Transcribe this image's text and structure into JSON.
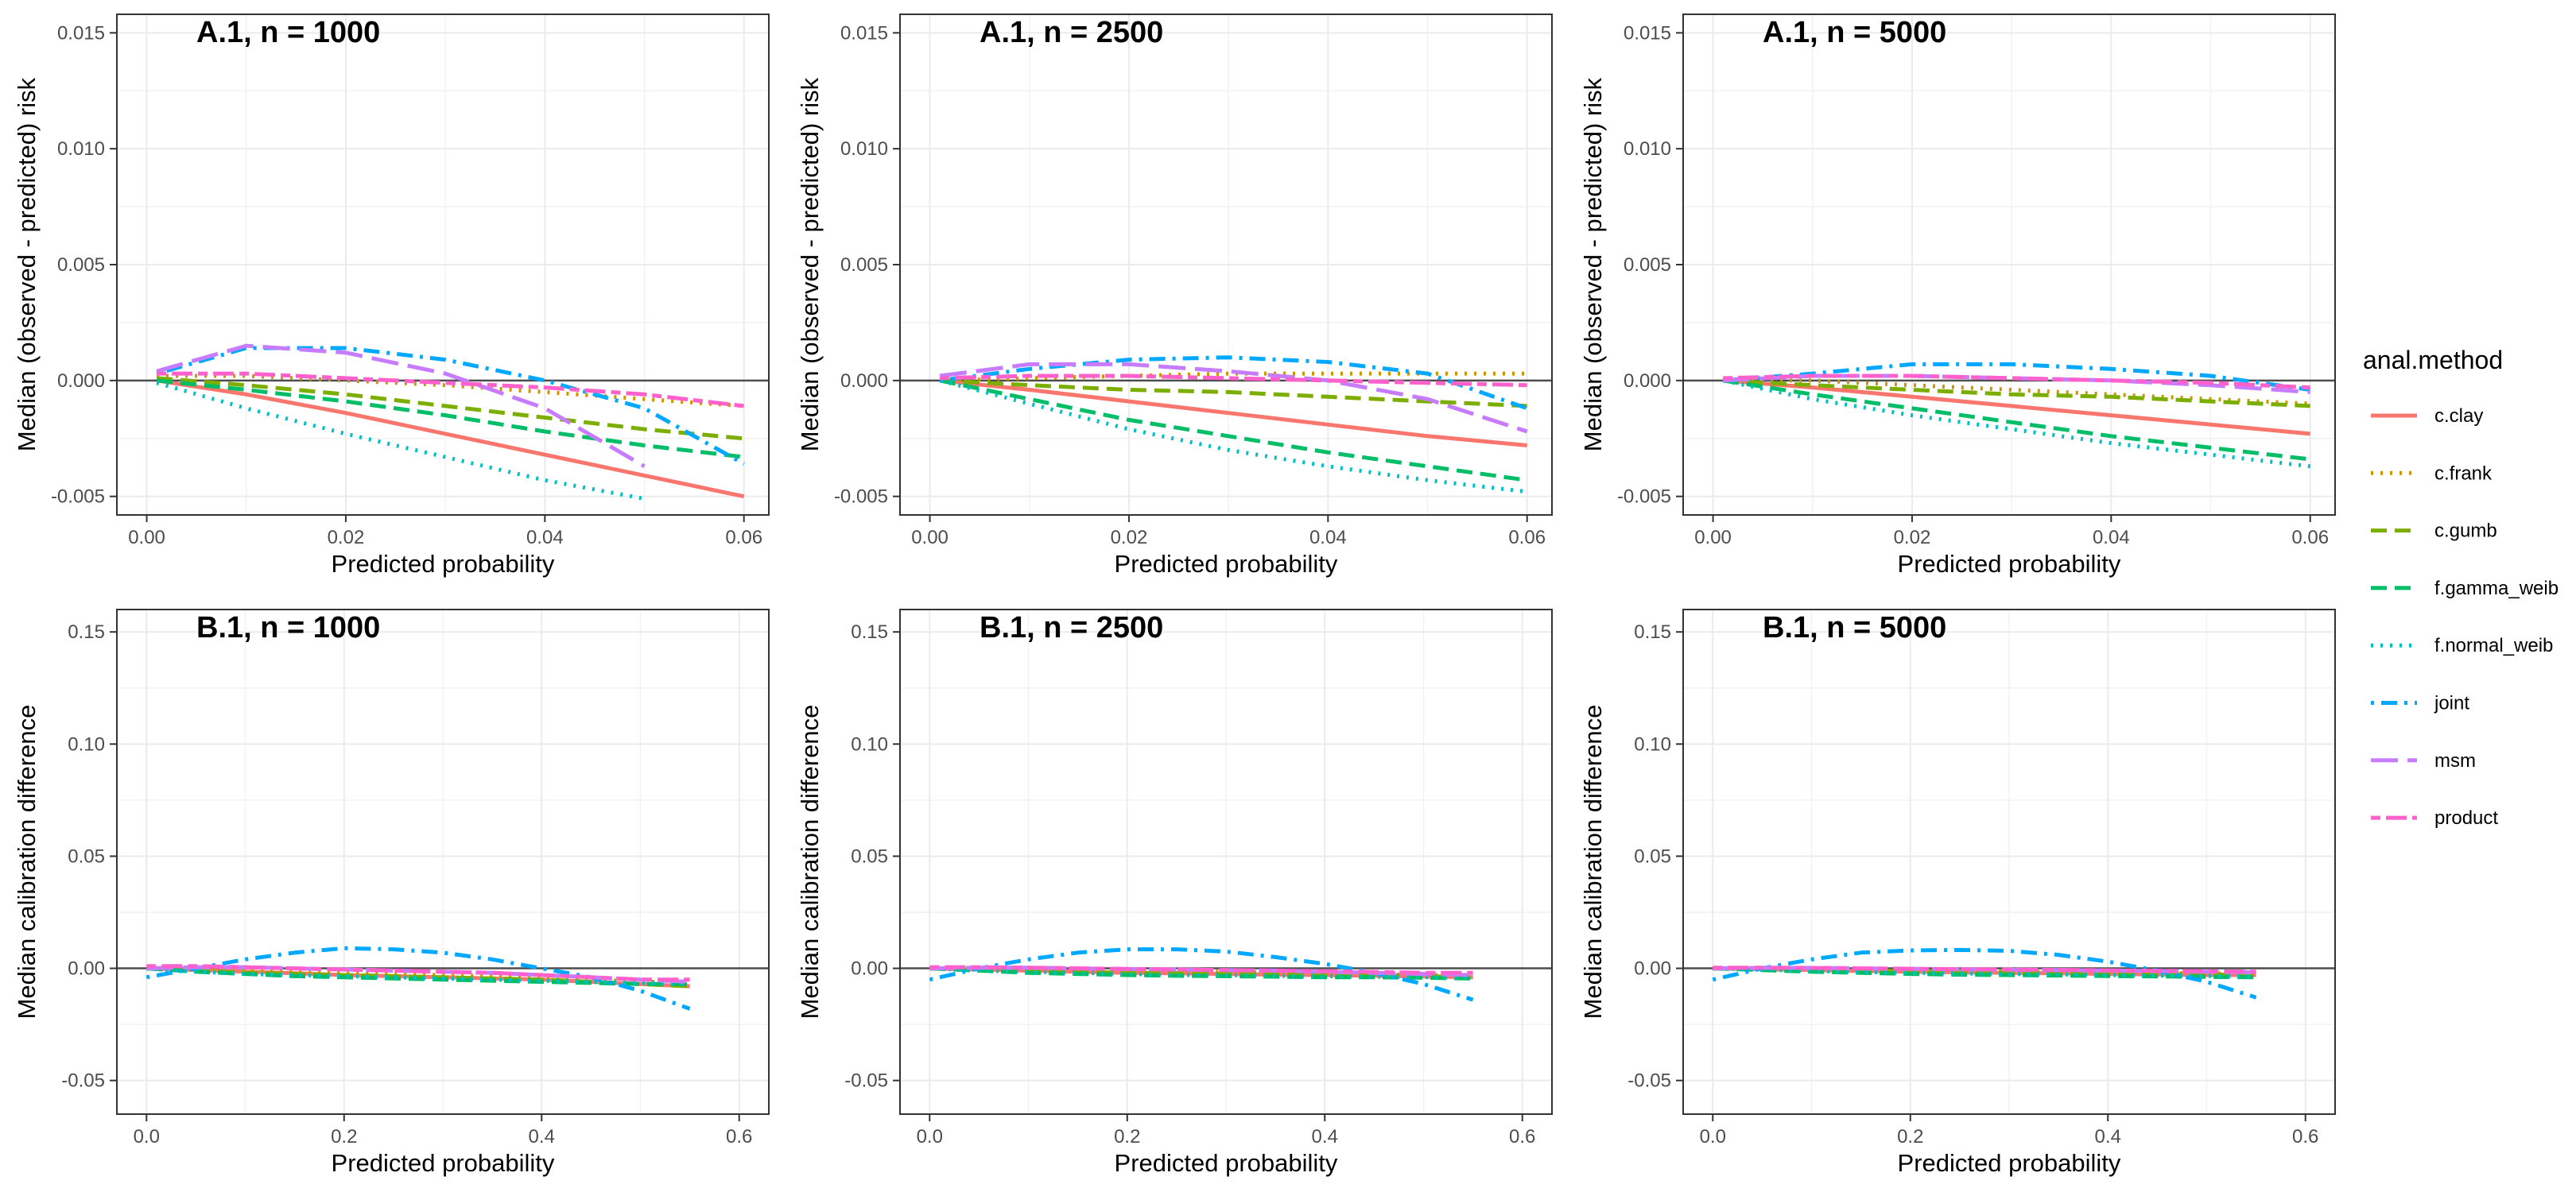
{
  "legend": {
    "title": "anal.method",
    "entries": [
      {
        "name": "c.clay",
        "color": "#F8766D",
        "dash": "solid"
      },
      {
        "name": "c.frank",
        "color": "#CD9600",
        "dash": "dotted"
      },
      {
        "name": "c.gumb",
        "color": "#7CAE00",
        "dash": "dashed"
      },
      {
        "name": "f.gamma_weib",
        "color": "#00BE67",
        "dash": "dashed"
      },
      {
        "name": "f.normal_weib",
        "color": "#00BFC4",
        "dash": "dotted"
      },
      {
        "name": "joint",
        "color": "#00A9FF",
        "dash": "dotdash"
      },
      {
        "name": "msm",
        "color": "#C77CFF",
        "dash": "longdash"
      },
      {
        "name": "product",
        "color": "#FF61CC",
        "dash": "twodash"
      }
    ]
  },
  "chart_data": [
    {
      "type": "line",
      "title": "A.1, n = 1000",
      "xlabel": "Predicted probability",
      "ylabel": "Median (observed - predicted) risk",
      "xlim": [
        -0.003,
        0.0625
      ],
      "ylim": [
        -0.0058,
        0.0158
      ],
      "xticks": [
        0,
        0.02,
        0.04,
        0.06
      ],
      "xticklabels": [
        "0.00",
        "0.02",
        "0.04",
        "0.06"
      ],
      "yticks": [
        -0.005,
        0,
        0.005,
        0.01,
        0.015
      ],
      "yticklabels": [
        "-0.005",
        "0.000",
        "0.005",
        "0.010",
        "0.015"
      ],
      "x": [
        0.001,
        0.01,
        0.02,
        0.03,
        0.04,
        0.05,
        0.06
      ],
      "series": [
        {
          "name": "c.clay",
          "values": [
            0.0,
            -0.0006,
            -0.0014,
            -0.0023,
            -0.0032,
            -0.0041,
            -0.005
          ]
        },
        {
          "name": "c.frank",
          "values": [
            0.0002,
            0.0002,
            0.0,
            -0.0002,
            -0.0005,
            -0.0008,
            -0.0011
          ]
        },
        {
          "name": "c.gumb",
          "values": [
            0.0001,
            -0.0002,
            -0.0006,
            -0.0011,
            -0.0016,
            -0.0021,
            -0.0025
          ]
        },
        {
          "name": "f.gamma_weib",
          "values": [
            0.0,
            -0.0004,
            -0.0009,
            -0.0015,
            -0.0022,
            -0.0028,
            -0.0033
          ]
        },
        {
          "name": "f.normal_weib",
          "values": [
            -0.0001,
            -0.0012,
            -0.0023,
            -0.0033,
            -0.0043,
            -0.0051,
            null
          ]
        },
        {
          "name": "joint",
          "values": [
            0.0003,
            0.0014,
            0.0014,
            0.0009,
            0.0,
            -0.0012,
            -0.0036
          ]
        },
        {
          "name": "msm",
          "values": [
            0.0004,
            0.0015,
            0.0012,
            0.0003,
            -0.0012,
            -0.0037,
            null
          ]
        },
        {
          "name": "product",
          "values": [
            0.0003,
            0.0003,
            0.0001,
            -0.0001,
            -0.0003,
            -0.0006,
            -0.0011
          ]
        }
      ]
    },
    {
      "type": "line",
      "title": "A.1, n = 2500",
      "xlabel": "Predicted probability",
      "ylabel": "Median (observed - predicted) risk",
      "xlim": [
        -0.003,
        0.0625
      ],
      "ylim": [
        -0.0058,
        0.0158
      ],
      "xticks": [
        0,
        0.02,
        0.04,
        0.06
      ],
      "xticklabels": [
        "0.00",
        "0.02",
        "0.04",
        "0.06"
      ],
      "yticks": [
        -0.005,
        0,
        0.005,
        0.01,
        0.015
      ],
      "yticklabels": [
        "-0.005",
        "0.000",
        "0.005",
        "0.010",
        "0.015"
      ],
      "x": [
        0.001,
        0.01,
        0.02,
        0.03,
        0.04,
        0.05,
        0.06
      ],
      "series": [
        {
          "name": "c.clay",
          "values": [
            0.0,
            -0.0004,
            -0.0009,
            -0.0014,
            -0.0019,
            -0.0024,
            -0.0028
          ]
        },
        {
          "name": "c.frank",
          "values": [
            0.0,
            0.0001,
            0.0002,
            0.0003,
            0.0003,
            0.0003,
            0.0003
          ]
        },
        {
          "name": "c.gumb",
          "values": [
            0.0,
            -0.0002,
            -0.0004,
            -0.0005,
            -0.0007,
            -0.0009,
            -0.0011
          ]
        },
        {
          "name": "f.gamma_weib",
          "values": [
            0.0,
            -0.0008,
            -0.0017,
            -0.0024,
            -0.0031,
            -0.0037,
            -0.0043
          ]
        },
        {
          "name": "f.normal_weib",
          "values": [
            0.0,
            -0.001,
            -0.0021,
            -0.003,
            -0.0037,
            -0.0043,
            -0.0048
          ]
        },
        {
          "name": "joint",
          "values": [
            0.0,
            0.0005,
            0.0009,
            0.001,
            0.0008,
            0.0003,
            -0.0012
          ]
        },
        {
          "name": "msm",
          "values": [
            0.0002,
            0.0007,
            0.0007,
            0.0004,
            0.0,
            -0.0008,
            -0.0022
          ]
        },
        {
          "name": "product",
          "values": [
            0.0001,
            0.0002,
            0.0002,
            0.0001,
            0.0,
            -0.0001,
            -0.0002
          ]
        }
      ]
    },
    {
      "type": "line",
      "title": "A.1, n = 5000",
      "xlabel": "Predicted probability",
      "ylabel": "Median (observed - predicted) risk",
      "xlim": [
        -0.003,
        0.0625
      ],
      "ylim": [
        -0.0058,
        0.0158
      ],
      "xticks": [
        0,
        0.02,
        0.04,
        0.06
      ],
      "xticklabels": [
        "0.00",
        "0.02",
        "0.04",
        "0.06"
      ],
      "yticks": [
        -0.005,
        0,
        0.005,
        0.01,
        0.015
      ],
      "yticklabels": [
        "-0.005",
        "0.000",
        "0.005",
        "0.010",
        "0.015"
      ],
      "x": [
        0.001,
        0.01,
        0.02,
        0.03,
        0.04,
        0.05,
        0.06
      ],
      "series": [
        {
          "name": "c.clay",
          "values": [
            0.0,
            -0.0003,
            -0.0007,
            -0.0011,
            -0.0015,
            -0.0019,
            -0.0023
          ]
        },
        {
          "name": "c.frank",
          "values": [
            0.0,
            0.0,
            -0.0002,
            -0.0004,
            -0.0006,
            -0.0008,
            -0.001
          ]
        },
        {
          "name": "c.gumb",
          "values": [
            0.0,
            -0.0002,
            -0.0004,
            -0.0006,
            -0.0007,
            -0.0009,
            -0.0011
          ]
        },
        {
          "name": "f.gamma_weib",
          "values": [
            0.0,
            -0.0006,
            -0.0012,
            -0.0018,
            -0.0024,
            -0.0029,
            -0.0034
          ]
        },
        {
          "name": "f.normal_weib",
          "values": [
            0.0,
            -0.0008,
            -0.0015,
            -0.0021,
            -0.0027,
            -0.0032,
            -0.0037
          ]
        },
        {
          "name": "joint",
          "values": [
            0.0,
            0.0003,
            0.0007,
            0.0007,
            0.0005,
            0.0002,
            -0.0004
          ]
        },
        {
          "name": "msm",
          "values": [
            0.0,
            0.0002,
            0.0002,
            0.0001,
            0.0,
            -0.0002,
            -0.0005
          ]
        },
        {
          "name": "product",
          "values": [
            0.0001,
            0.0002,
            0.0002,
            0.0001,
            0.0,
            -0.0001,
            -0.0003
          ]
        }
      ]
    },
    {
      "type": "line",
      "title": "B.1, n = 1000",
      "xlabel": "Predicted probability",
      "ylabel": "Median calibration difference",
      "xlim": [
        -0.03,
        0.63
      ],
      "ylim": [
        -0.065,
        0.16
      ],
      "xticks": [
        0,
        0.2,
        0.4,
        0.6
      ],
      "xticklabels": [
        "0.0",
        "0.2",
        "0.4",
        "0.6"
      ],
      "yticks": [
        -0.05,
        0,
        0.05,
        0.1,
        0.15
      ],
      "yticklabels": [
        "-0.05",
        "0.00",
        "0.05",
        "0.10",
        "0.15"
      ],
      "x": [
        0.0,
        0.05,
        0.1,
        0.15,
        0.2,
        0.25,
        0.3,
        0.35,
        0.4,
        0.45,
        0.5,
        0.55
      ],
      "series": [
        {
          "name": "c.clay",
          "values": [
            0.0,
            -0.0008,
            -0.0015,
            -0.0022,
            -0.003,
            -0.0035,
            -0.004,
            -0.0045,
            -0.005,
            -0.006,
            -0.007,
            -0.008
          ]
        },
        {
          "name": "c.frank",
          "values": [
            0.0,
            -0.0005,
            -0.001,
            -0.0015,
            -0.002,
            -0.0025,
            -0.003,
            -0.0035,
            -0.004,
            -0.005,
            -0.006,
            -0.006
          ]
        },
        {
          "name": "c.gumb",
          "values": [
            0.0,
            -0.001,
            -0.002,
            -0.0025,
            -0.003,
            -0.0035,
            -0.004,
            -0.0045,
            -0.005,
            -0.006,
            -0.007,
            -0.008
          ]
        },
        {
          "name": "f.gamma_weib",
          "values": [
            0.0,
            -0.0015,
            -0.0025,
            -0.0035,
            -0.004,
            -0.0045,
            -0.005,
            -0.0055,
            -0.006,
            -0.0065,
            -0.007,
            -0.007
          ]
        },
        {
          "name": "f.normal_weib",
          "values": [
            0.0,
            -0.0015,
            -0.0025,
            -0.003,
            -0.0035,
            -0.004,
            -0.0045,
            -0.005,
            -0.0055,
            -0.006,
            -0.0065,
            -0.007
          ]
        },
        {
          "name": "joint",
          "values": [
            -0.004,
            0.0,
            0.004,
            0.007,
            0.009,
            0.0085,
            0.007,
            0.004,
            0.0,
            -0.004,
            -0.01,
            -0.018
          ]
        },
        {
          "name": "msm",
          "values": [
            0.0,
            0.0005,
            0.0005,
            0.0,
            -0.0005,
            -0.001,
            -0.0015,
            -0.002,
            -0.003,
            -0.004,
            -0.005,
            -0.006
          ]
        },
        {
          "name": "product",
          "values": [
            0.001,
            0.001,
            0.0005,
            0.0,
            -0.0005,
            -0.001,
            -0.0015,
            -0.002,
            -0.003,
            -0.004,
            -0.005,
            -0.005
          ]
        }
      ]
    },
    {
      "type": "line",
      "title": "B.1, n = 2500",
      "xlabel": "Predicted probability",
      "ylabel": "Median calibration difference",
      "xlim": [
        -0.03,
        0.63
      ],
      "ylim": [
        -0.065,
        0.16
      ],
      "xticks": [
        0,
        0.2,
        0.4,
        0.6
      ],
      "xticklabels": [
        "0.0",
        "0.2",
        "0.4",
        "0.6"
      ],
      "yticks": [
        -0.05,
        0,
        0.05,
        0.1,
        0.15
      ],
      "yticklabels": [
        "-0.05",
        "0.00",
        "0.05",
        "0.10",
        "0.15"
      ],
      "x": [
        0.0,
        0.05,
        0.1,
        0.15,
        0.2,
        0.25,
        0.3,
        0.35,
        0.4,
        0.45,
        0.5,
        0.55
      ],
      "series": [
        {
          "name": "c.clay",
          "values": [
            0.0,
            -0.0005,
            -0.001,
            -0.0015,
            -0.002,
            -0.0022,
            -0.0025,
            -0.0028,
            -0.003,
            -0.0033,
            -0.0036,
            -0.004
          ]
        },
        {
          "name": "c.frank",
          "values": [
            0.0,
            0.0,
            -0.0005,
            -0.001,
            -0.001,
            -0.0015,
            -0.0015,
            -0.002,
            -0.002,
            -0.0025,
            -0.003,
            -0.003
          ]
        },
        {
          "name": "c.gumb",
          "values": [
            0.0,
            -0.0005,
            -0.001,
            -0.0015,
            -0.002,
            -0.002,
            -0.0025,
            -0.0025,
            -0.003,
            -0.003,
            -0.0035,
            -0.004
          ]
        },
        {
          "name": "f.gamma_weib",
          "values": [
            0.0,
            -0.001,
            -0.002,
            -0.0025,
            -0.003,
            -0.0033,
            -0.0035,
            -0.0037,
            -0.004,
            -0.004,
            -0.0042,
            -0.0045
          ]
        },
        {
          "name": "f.normal_weib",
          "values": [
            0.0,
            -0.001,
            -0.0015,
            -0.002,
            -0.0025,
            -0.003,
            -0.003,
            -0.0033,
            -0.0035,
            -0.0037,
            -0.004,
            -0.004
          ]
        },
        {
          "name": "joint",
          "values": [
            -0.005,
            0.0,
            0.004,
            0.007,
            0.0085,
            0.0085,
            0.0075,
            0.005,
            0.002,
            -0.002,
            -0.007,
            -0.014
          ]
        },
        {
          "name": "msm",
          "values": [
            0.0,
            0.0003,
            0.0003,
            0.0,
            -0.0003,
            -0.0005,
            -0.0008,
            -0.001,
            -0.0015,
            -0.002,
            -0.0025,
            -0.003
          ]
        },
        {
          "name": "product",
          "values": [
            0.0005,
            0.0005,
            0.0003,
            0.0,
            -0.0003,
            -0.0005,
            -0.0008,
            -0.001,
            -0.0013,
            -0.0016,
            -0.002,
            -0.002
          ]
        }
      ]
    },
    {
      "type": "line",
      "title": "B.1, n = 5000",
      "xlabel": "Predicted probability",
      "ylabel": "Median calibration difference",
      "xlim": [
        -0.03,
        0.63
      ],
      "ylim": [
        -0.065,
        0.16
      ],
      "xticks": [
        0,
        0.2,
        0.4,
        0.6
      ],
      "xticklabels": [
        "0.0",
        "0.2",
        "0.4",
        "0.6"
      ],
      "yticks": [
        -0.05,
        0,
        0.05,
        0.1,
        0.15
      ],
      "yticklabels": [
        "-0.05",
        "0.00",
        "0.05",
        "0.10",
        "0.15"
      ],
      "x": [
        0.0,
        0.05,
        0.1,
        0.15,
        0.2,
        0.25,
        0.3,
        0.35,
        0.4,
        0.45,
        0.5,
        0.55
      ],
      "series": [
        {
          "name": "c.clay",
          "values": [
            0.0,
            -0.0004,
            -0.0008,
            -0.0012,
            -0.0015,
            -0.0018,
            -0.002,
            -0.0022,
            -0.0025,
            -0.0027,
            -0.003,
            -0.003
          ]
        },
        {
          "name": "c.frank",
          "values": [
            0.0,
            0.0,
            -0.0004,
            -0.0008,
            -0.001,
            -0.0012,
            -0.0014,
            -0.0016,
            -0.0018,
            -0.002,
            -0.0022,
            -0.0025
          ]
        },
        {
          "name": "c.gumb",
          "values": [
            0.0,
            -0.0004,
            -0.0008,
            -0.001,
            -0.0012,
            -0.0015,
            -0.0017,
            -0.002,
            -0.0022,
            -0.0025,
            -0.0027,
            -0.003
          ]
        },
        {
          "name": "f.gamma_weib",
          "values": [
            0.0,
            -0.0008,
            -0.0015,
            -0.002,
            -0.0025,
            -0.0028,
            -0.003,
            -0.0032,
            -0.0034,
            -0.0036,
            -0.0038,
            -0.004
          ]
        },
        {
          "name": "f.normal_weib",
          "values": [
            0.0,
            -0.0006,
            -0.0012,
            -0.0016,
            -0.002,
            -0.0023,
            -0.0025,
            -0.0027,
            -0.003,
            -0.0032,
            -0.0034,
            -0.0036
          ]
        },
        {
          "name": "joint",
          "values": [
            -0.005,
            0.0,
            0.004,
            0.007,
            0.008,
            0.0082,
            0.0078,
            0.006,
            0.003,
            -0.001,
            -0.006,
            -0.013
          ]
        },
        {
          "name": "msm",
          "values": [
            0.0,
            0.0002,
            0.0002,
            0.0,
            -0.0002,
            -0.0004,
            -0.0006,
            -0.0008,
            -0.001,
            -0.0012,
            -0.0015,
            -0.0018
          ]
        },
        {
          "name": "product",
          "values": [
            0.0003,
            0.0003,
            0.0002,
            0.0,
            -0.0002,
            -0.0004,
            -0.0005,
            -0.0007,
            -0.0009,
            -0.0011,
            -0.0013,
            -0.0015
          ]
        }
      ]
    }
  ]
}
